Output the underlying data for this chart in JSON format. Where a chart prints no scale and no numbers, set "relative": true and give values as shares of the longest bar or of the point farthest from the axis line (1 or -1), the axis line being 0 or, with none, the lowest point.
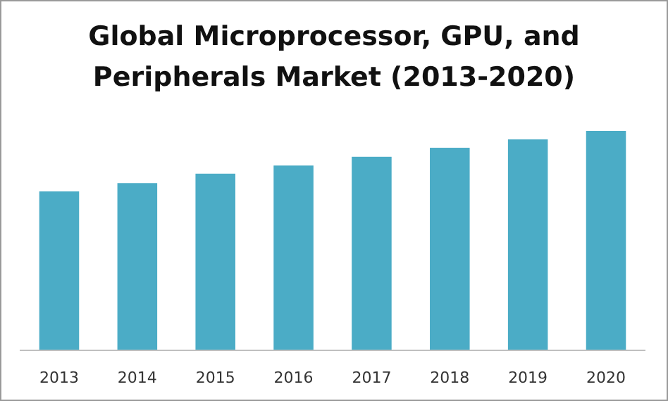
{
  "chart_data": {
    "type": "bar",
    "title": "Global Microprocessor, GPU, and Peripherals Market (2013-2020)",
    "categories": [
      "2013",
      "2014",
      "2015",
      "2016",
      "2017",
      "2018",
      "2019",
      "2020"
    ],
    "values": [
      0.724,
      0.762,
      0.805,
      0.842,
      0.882,
      0.923,
      0.961,
      1
    ],
    "color": "#4bacc6",
    "relative": true
  }
}
